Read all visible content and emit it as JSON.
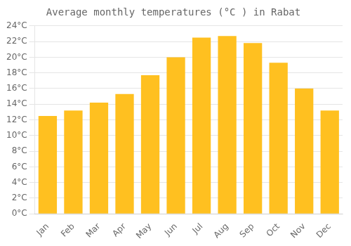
{
  "chart_data": {
    "type": "bar",
    "title": "Average monthly temperatures (°C ) in Rabat",
    "categories": [
      "Jan",
      "Feb",
      "Mar",
      "Apr",
      "May",
      "Jun",
      "Jul",
      "Aug",
      "Sep",
      "Oct",
      "Nov",
      "Dec"
    ],
    "values": [
      12.5,
      13.2,
      14.2,
      15.3,
      17.7,
      20.0,
      22.5,
      22.7,
      21.8,
      19.3,
      16.0,
      13.2
    ],
    "color": "#FFC020",
    "ylim": [
      0,
      24
    ],
    "yticks": [
      {
        "value": 0,
        "label": "0°C"
      },
      {
        "value": 2,
        "label": "2°C"
      },
      {
        "value": 4,
        "label": "4°C"
      },
      {
        "value": 6,
        "label": "6°C"
      },
      {
        "value": 8,
        "label": "8°C"
      },
      {
        "value": 10,
        "label": "10°C"
      },
      {
        "value": 12,
        "label": "12°C"
      },
      {
        "value": 14,
        "label": "14°C"
      },
      {
        "value": 16,
        "label": "16°C"
      },
      {
        "value": 18,
        "label": "18°C"
      },
      {
        "value": 20,
        "label": "20°C"
      },
      {
        "value": 22,
        "label": "22°C"
      },
      {
        "value": 24,
        "label": "24°C"
      }
    ],
    "grid": true
  }
}
